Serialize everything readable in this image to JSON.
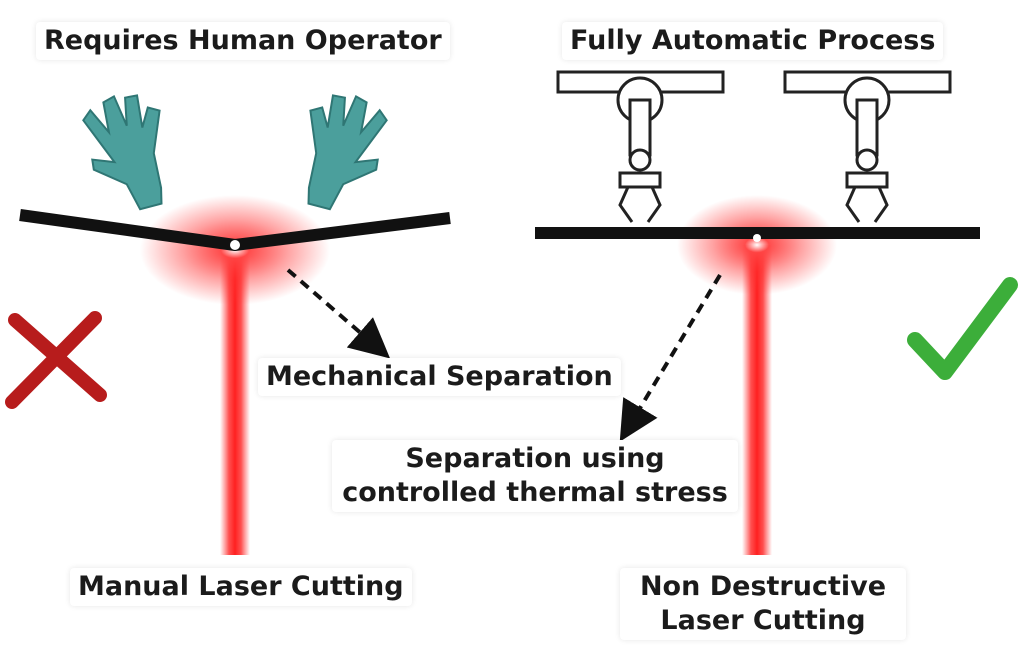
{
  "labels": {
    "left_title": "Requires Human Operator",
    "right_title": "Fully Automatic Process",
    "mechanical_separation": "Mechanical Separation",
    "thermal_line1": "Separation using",
    "thermal_line2": "controlled thermal stress",
    "manual_cutting": "Manual Laser Cutting",
    "non_destructive_line1": "Non Destructive",
    "non_destructive_line2": "Laser Cutting"
  },
  "icons": {
    "left_hand": "glove-icon",
    "right_hand": "glove-icon",
    "robot_arm_left": "robot-gripper-icon",
    "robot_arm_right": "robot-gripper-icon",
    "wrong_mark": "red-cross-icon",
    "right_mark": "green-checkmark-icon"
  },
  "colors": {
    "laser": "#ff2a2a",
    "glove": "#4b9f9c",
    "cross": "#b71c1c",
    "check": "#3cae3a",
    "sheet": "#111111"
  }
}
